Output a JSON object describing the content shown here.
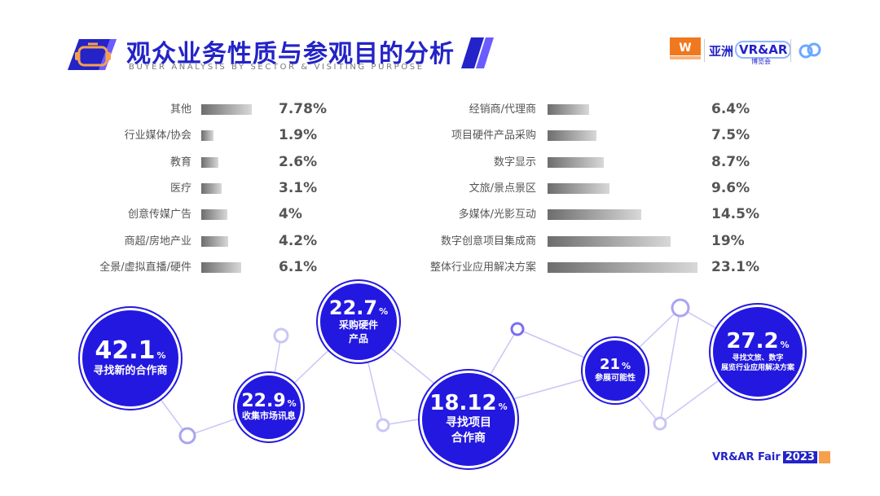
{
  "header": {
    "title": "观众业务性质与参观目的分析",
    "subtitle": "BUYER ANALYSIS BY SECTOR & VISITING PURPOSE"
  },
  "logos": {
    "partner_logo_text": "亚洲VR&AR博览会",
    "brand_cn": "亚洲",
    "brand_en": "VR&AR",
    "brand_sub": "博览会"
  },
  "footer": {
    "event": "VR&AR Fair",
    "year": "2023"
  },
  "colors": {
    "accent": "#2323c8",
    "bubble": "#2318e0",
    "bar_dark": "#6d6d6d",
    "bar_light": "#d8d8d8",
    "footer_block": "#f6a04d"
  },
  "chart_data": [
    {
      "type": "bar",
      "orientation": "horizontal",
      "categories": [
        "其他",
        "行业媒体/协会",
        "教育",
        "医疗",
        "创意传媒广告",
        "商超/房地产业",
        "全景/虚拟直播/硬件"
      ],
      "values": [
        7.78,
        1.9,
        2.6,
        3.1,
        4,
        4.2,
        6.1
      ],
      "labels": [
        "7.78%",
        "1.9%",
        "2.6%",
        "3.1%",
        "4%",
        "4.2%",
        "6.1%"
      ]
    },
    {
      "type": "bar",
      "orientation": "horizontal",
      "categories": [
        "经销商/代理商",
        "项目硬件产品采购",
        "数字显示",
        "文旅/景点景区",
        "多媒体/光影互动",
        "数字创意项目集成商",
        "整体行业应用解决方案"
      ],
      "values": [
        6.4,
        7.5,
        8.7,
        9.6,
        14.5,
        19,
        23.1
      ],
      "labels": [
        "6.4%",
        "7.5%",
        "8.7%",
        "9.6%",
        "14.5%",
        "19%",
        "23.1%"
      ]
    },
    {
      "type": "bubble",
      "items": [
        {
          "value": "42.1",
          "unit": "%",
          "label": [
            "寻找新的合作商"
          ]
        },
        {
          "value": "22.9",
          "unit": "%",
          "label": [
            "收集市场讯息"
          ]
        },
        {
          "value": "22.7",
          "unit": "%",
          "label": [
            "采购硬件",
            "产品"
          ]
        },
        {
          "value": "18.12",
          "unit": "%",
          "label": [
            "寻找项目",
            "合作商"
          ]
        },
        {
          "value": "21",
          "unit": "%",
          "label": [
            "参展可能性"
          ]
        },
        {
          "value": "27.2",
          "unit": "%",
          "label": [
            "寻找文旅、数字",
            "展览行业应用解决方案"
          ]
        }
      ]
    }
  ]
}
